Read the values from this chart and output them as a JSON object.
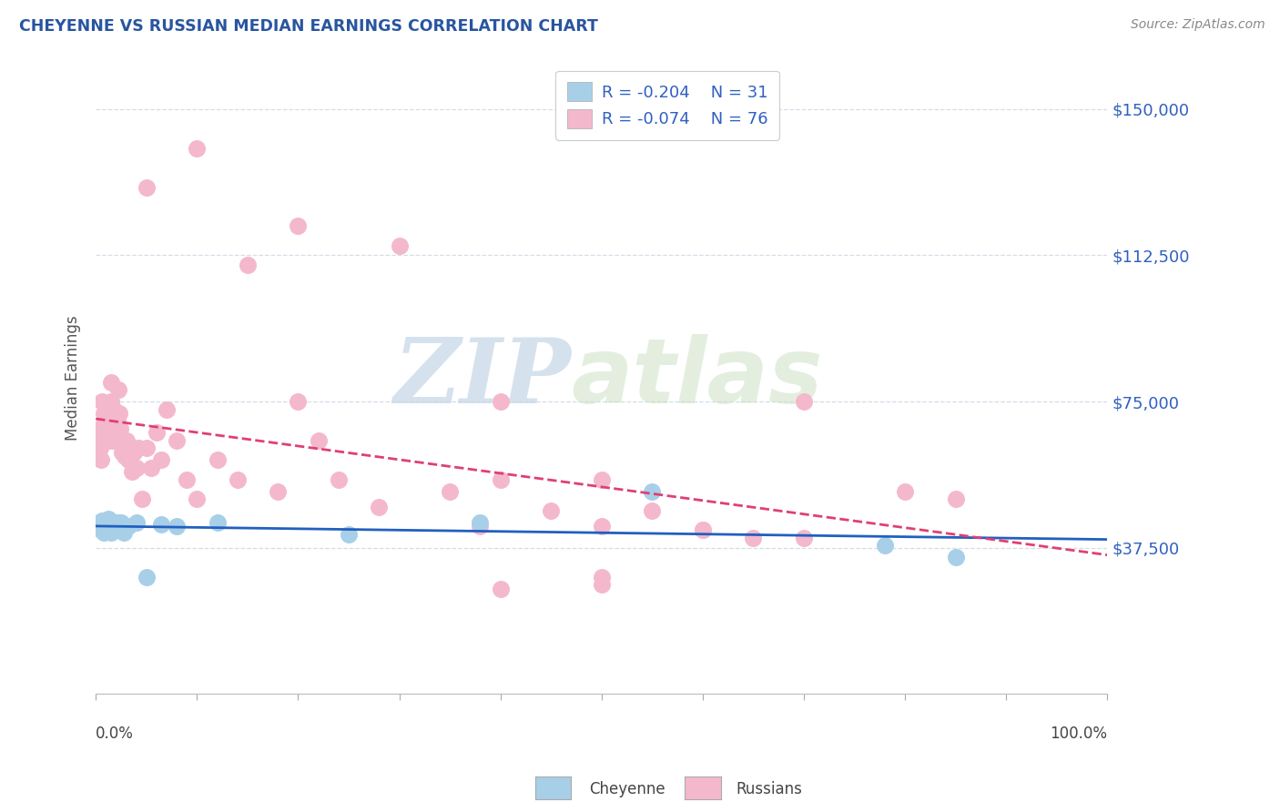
{
  "title": "CHEYENNE VS RUSSIAN MEDIAN EARNINGS CORRELATION CHART",
  "source": "Source: ZipAtlas.com",
  "ylabel": "Median Earnings",
  "cheyenne_R": "-0.204",
  "cheyenne_N": "31",
  "russian_R": "-0.074",
  "russian_N": "76",
  "cheyenne_dot_color": "#a8cfe8",
  "russian_dot_color": "#f4b8cc",
  "cheyenne_line_color": "#2060c0",
  "russian_line_color": "#e04070",
  "text_color": "#3060c0",
  "title_color": "#2855a0",
  "grid_color": "#d4dde8",
  "background_color": "#ffffff",
  "yticks": [
    0,
    37500,
    75000,
    112500,
    150000
  ],
  "ytick_labels": [
    "",
    "$37,500",
    "$75,000",
    "$112,500",
    "$150,000"
  ],
  "xmin": 0.0,
  "xmax": 1.0,
  "ymin": 0,
  "ymax": 162000,
  "cheyenne_x": [
    0.003,
    0.004,
    0.005,
    0.006,
    0.007,
    0.008,
    0.009,
    0.01,
    0.011,
    0.012,
    0.013,
    0.014,
    0.015,
    0.016,
    0.017,
    0.018,
    0.02,
    0.022,
    0.025,
    0.028,
    0.032,
    0.04,
    0.05,
    0.065,
    0.08,
    0.12,
    0.25,
    0.38,
    0.55,
    0.78,
    0.85
  ],
  "cheyenne_y": [
    44000,
    43500,
    42000,
    44500,
    43000,
    41500,
    44000,
    43200,
    42800,
    45000,
    44500,
    43000,
    41500,
    43500,
    42000,
    44000,
    43500,
    44000,
    44000,
    41500,
    43000,
    44000,
    30000,
    43500,
    43000,
    44000,
    41000,
    44000,
    52000,
    38000,
    35000
  ],
  "russian_x": [
    0.002,
    0.003,
    0.004,
    0.005,
    0.006,
    0.007,
    0.008,
    0.009,
    0.01,
    0.011,
    0.012,
    0.013,
    0.013,
    0.014,
    0.015,
    0.015,
    0.016,
    0.017,
    0.018,
    0.019,
    0.02,
    0.021,
    0.022,
    0.023,
    0.024,
    0.025,
    0.026,
    0.027,
    0.028,
    0.029,
    0.03,
    0.032,
    0.034,
    0.036,
    0.038,
    0.04,
    0.042,
    0.046,
    0.05,
    0.055,
    0.06,
    0.065,
    0.07,
    0.08,
    0.09,
    0.1,
    0.12,
    0.14,
    0.18,
    0.2,
    0.22,
    0.24,
    0.28,
    0.35,
    0.38,
    0.4,
    0.45,
    0.5,
    0.55,
    0.6,
    0.65,
    0.7,
    0.05,
    0.1,
    0.15,
    0.2,
    0.3,
    0.4,
    0.5,
    0.6,
    0.7,
    0.8,
    0.85,
    0.5,
    0.5,
    0.4
  ],
  "russian_y": [
    65000,
    68000,
    63000,
    60000,
    75000,
    68000,
    72000,
    70000,
    67000,
    71000,
    65000,
    68000,
    74000,
    72000,
    75000,
    80000,
    70000,
    65000,
    73000,
    68000,
    67000,
    70000,
    78000,
    72000,
    68000,
    65000,
    62000,
    65000,
    63000,
    61000,
    65000,
    60000,
    63000,
    57000,
    62000,
    58000,
    63000,
    50000,
    63000,
    58000,
    67000,
    60000,
    73000,
    65000,
    55000,
    50000,
    60000,
    55000,
    52000,
    75000,
    65000,
    55000,
    48000,
    52000,
    43000,
    55000,
    47000,
    43000,
    47000,
    42000,
    40000,
    75000,
    130000,
    140000,
    110000,
    120000,
    115000,
    75000,
    55000,
    42000,
    40000,
    52000,
    50000,
    30000,
    28000,
    27000
  ]
}
